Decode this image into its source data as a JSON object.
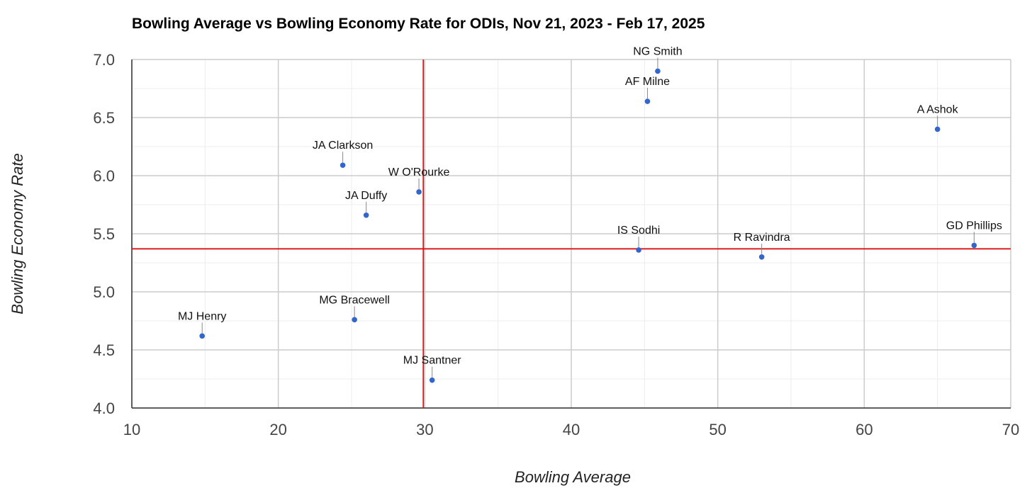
{
  "chart_data": {
    "type": "scatter",
    "title": "Bowling Average vs Bowling Economy Rate for ODIs, Nov 21, 2023 - Feb 17, 2025",
    "xlabel": "Bowling Average",
    "ylabel": "Bowling Economy Rate",
    "xlim": [
      10,
      70
    ],
    "ylim": [
      4.0,
      7.0
    ],
    "x_ticks": [
      "10",
      "20",
      "30",
      "40",
      "50",
      "60",
      "70"
    ],
    "y_ticks": [
      "4.0",
      "4.5",
      "5.0",
      "5.5",
      "6.0",
      "6.5",
      "7.0"
    ],
    "grid": true,
    "reference_lines": {
      "vertical_x": 29.9,
      "horizontal_y": 5.37,
      "color": "#dd1111"
    },
    "point_color": "#3366cc",
    "points": [
      {
        "label": "NG Smith",
        "x": 45.9,
        "y": 6.9
      },
      {
        "label": "AF Milne",
        "x": 45.2,
        "y": 6.64
      },
      {
        "label": "A Ashok",
        "x": 65.0,
        "y": 6.4
      },
      {
        "label": "JA Clarkson",
        "x": 24.4,
        "y": 6.09
      },
      {
        "label": "W O'Rourke",
        "x": 29.6,
        "y": 5.86
      },
      {
        "label": "JA Duffy",
        "x": 26.0,
        "y": 5.66
      },
      {
        "label": "IS Sodhi",
        "x": 44.6,
        "y": 5.36
      },
      {
        "label": "R Ravindra",
        "x": 53.0,
        "y": 5.3
      },
      {
        "label": "GD Phillips",
        "x": 67.5,
        "y": 5.4
      },
      {
        "label": "MG Bracewell",
        "x": 25.2,
        "y": 4.76
      },
      {
        "label": "MJ Henry",
        "x": 14.8,
        "y": 4.62
      },
      {
        "label": "MJ Santner",
        "x": 30.5,
        "y": 4.24
      }
    ]
  }
}
